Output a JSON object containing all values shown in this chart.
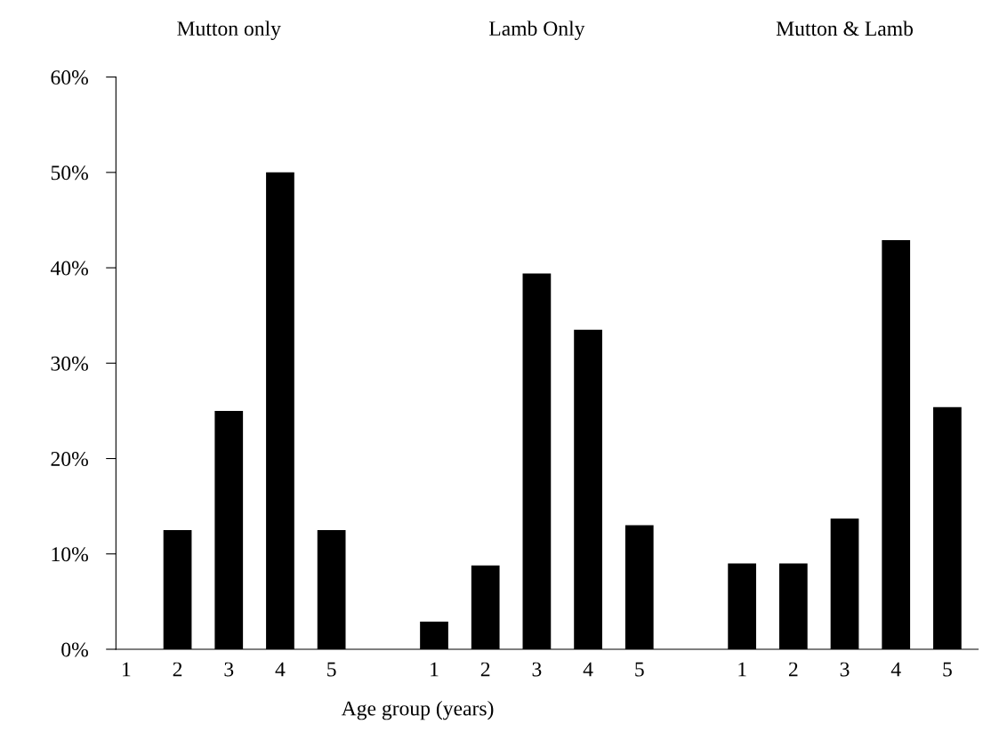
{
  "chart_data": {
    "type": "bar",
    "xlabel": "Age group (years)",
    "categories": [
      "1",
      "2",
      "3",
      "4",
      "5",
      null,
      "1",
      "2",
      "3",
      "4",
      "5",
      null,
      "1",
      "2",
      "3",
      "4",
      "5"
    ],
    "values": [
      0,
      12.5,
      25,
      50,
      12.5,
      null,
      2.9,
      8.8,
      39.4,
      33.5,
      13,
      null,
      9,
      9,
      13.7,
      42.9,
      25.4
    ],
    "color": "#000000",
    "annotations": [
      "Mutton only",
      "Lamb Only",
      "Mutton & Lamb"
    ],
    "ylim": [
      0,
      60
    ],
    "yticks": [
      {
        "value": 0,
        "label": "0%"
      },
      {
        "value": 10,
        "label": "10%"
      },
      {
        "value": 20,
        "label": "20%"
      },
      {
        "value": 30,
        "label": "30%"
      },
      {
        "value": 40,
        "label": "40%"
      },
      {
        "value": 50,
        "label": "50%"
      },
      {
        "value": 60,
        "label": "60%"
      }
    ],
    "grid": false,
    "legend": false
  }
}
